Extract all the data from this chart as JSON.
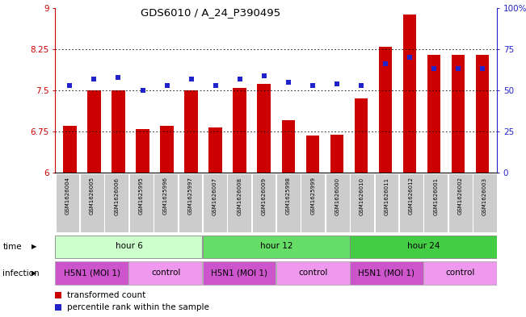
{
  "title": "GDS6010 / A_24_P390495",
  "samples": [
    "GSM1626004",
    "GSM1626005",
    "GSM1626006",
    "GSM1625995",
    "GSM1625996",
    "GSM1625997",
    "GSM1626007",
    "GSM1626008",
    "GSM1626009",
    "GSM1625998",
    "GSM1625999",
    "GSM1626000",
    "GSM1626010",
    "GSM1626011",
    "GSM1626012",
    "GSM1626001",
    "GSM1626002",
    "GSM1626003"
  ],
  "red_values": [
    6.85,
    7.5,
    7.5,
    6.8,
    6.85,
    7.5,
    6.82,
    7.55,
    7.62,
    6.95,
    6.68,
    6.7,
    7.35,
    8.3,
    8.88,
    8.15,
    8.15,
    8.15
  ],
  "blue_values": [
    53,
    57,
    58,
    50,
    53,
    57,
    53,
    57,
    59,
    55,
    53,
    54,
    53,
    66,
    70,
    63,
    63,
    63
  ],
  "ylim_left": [
    6,
    9
  ],
  "ylim_right": [
    0,
    100
  ],
  "yticks_left": [
    6,
    6.75,
    7.5,
    8.25,
    9
  ],
  "yticks_right": [
    0,
    25,
    50,
    75,
    100
  ],
  "ytick_labels_left": [
    "6",
    "6.75",
    "7.5",
    "8.25",
    "9"
  ],
  "ytick_labels_right": [
    "0",
    "25",
    "50",
    "75",
    "100%"
  ],
  "hlines": [
    6.75,
    7.5,
    8.25
  ],
  "bar_color": "#cc0000",
  "blue_color": "#2222cc",
  "time_groups": [
    {
      "label": "hour 6",
      "start": 0,
      "end": 6,
      "color": "#ccffcc"
    },
    {
      "label": "hour 12",
      "start": 6,
      "end": 12,
      "color": "#66dd66"
    },
    {
      "label": "hour 24",
      "start": 12,
      "end": 18,
      "color": "#44cc44"
    }
  ],
  "infection_groups": [
    {
      "label": "H5N1 (MOI 1)",
      "start": 0,
      "end": 3,
      "color": "#cc55cc"
    },
    {
      "label": "control",
      "start": 3,
      "end": 6,
      "color": "#ee99ee"
    },
    {
      "label": "H5N1 (MOI 1)",
      "start": 6,
      "end": 9,
      "color": "#cc55cc"
    },
    {
      "label": "control",
      "start": 9,
      "end": 12,
      "color": "#ee99ee"
    },
    {
      "label": "H5N1 (MOI 1)",
      "start": 12,
      "end": 15,
      "color": "#cc55cc"
    },
    {
      "label": "control",
      "start": 15,
      "end": 18,
      "color": "#ee99ee"
    }
  ],
  "legend_items": [
    {
      "label": "transformed count",
      "color": "#cc0000"
    },
    {
      "label": "percentile rank within the sample",
      "color": "#2222cc"
    }
  ],
  "bg_color": "#ffffff",
  "sample_bg_color": "#cccccc",
  "bar_width": 0.55,
  "blue_marker_size": 4,
  "axis_color_left": "#cc0000",
  "axis_color_right": "#2222cc"
}
